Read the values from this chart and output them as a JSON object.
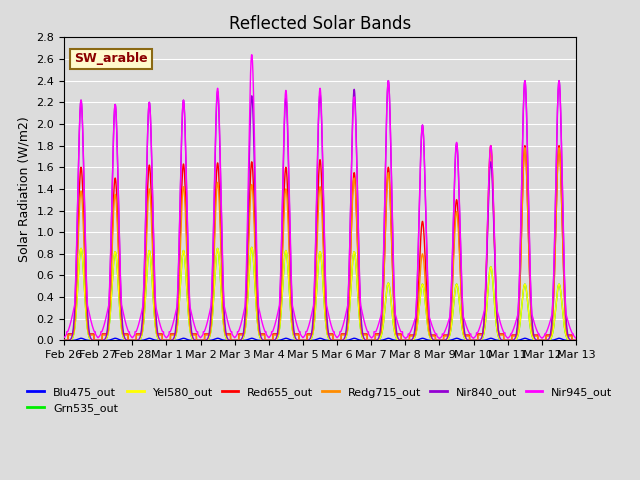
{
  "title": "Reflected Solar Bands",
  "ylabel": "Solar Radiation (W/m2)",
  "xlabel": "",
  "annotation": "SW_arable",
  "annotation_color": "#8B0000",
  "annotation_bg": "#FFFACD",
  "annotation_border": "#8B6914",
  "ylim": [
    0,
    2.8
  ],
  "background_color": "#DCDCDC",
  "plot_bg": "#DCDCDC",
  "series": [
    {
      "label": "Blu475_out",
      "color": "#0000FF",
      "zorder": 2,
      "lw": 1.0
    },
    {
      "label": "Grn535_out",
      "color": "#00EE00",
      "zorder": 3,
      "lw": 1.0
    },
    {
      "label": "Yel580_out",
      "color": "#FFFF00",
      "zorder": 4,
      "lw": 1.0
    },
    {
      "label": "Red655_out",
      "color": "#FF0000",
      "zorder": 5,
      "lw": 1.0
    },
    {
      "label": "Redg715_out",
      "color": "#FF8C00",
      "zorder": 6,
      "lw": 1.0
    },
    {
      "label": "Nir840_out",
      "color": "#9400D3",
      "zorder": 7,
      "lw": 1.0
    },
    {
      "label": "Nir945_out",
      "color": "#FF00FF",
      "zorder": 8,
      "lw": 1.0
    }
  ],
  "tick_labels": [
    "Feb 26",
    "Feb 27",
    "Feb 28",
    "Mar 1",
    "Mar 2",
    "Mar 3",
    "Mar 4",
    "Mar 5",
    "Mar 6",
    "Mar 7",
    "Mar 8",
    "Mar 9",
    "Mar 10",
    "Mar 11",
    "Mar 12",
    "Mar 13"
  ],
  "grid_color": "#FFFFFF",
  "title_fontsize": 12,
  "label_fontsize": 9,
  "tick_fontsize": 8,
  "legend_fontsize": 8,
  "n_days": 15,
  "day_peaks": {
    "Blu475_out": [
      0.02,
      0.02,
      0.02,
      0.02,
      0.02,
      0.02,
      0.02,
      0.02,
      0.02,
      0.02,
      0.02,
      0.02,
      0.02,
      0.02,
      0.02
    ],
    "Grn535_out": [
      0.85,
      0.82,
      0.83,
      0.83,
      0.85,
      0.86,
      0.83,
      0.82,
      0.82,
      0.53,
      0.52,
      0.52,
      0.68,
      0.52,
      0.52
    ],
    "Yel580_out": [
      0.85,
      0.82,
      0.83,
      0.83,
      0.85,
      0.86,
      0.83,
      0.82,
      0.82,
      0.53,
      0.52,
      0.52,
      0.68,
      0.52,
      0.52
    ],
    "Red655_out": [
      1.6,
      1.5,
      1.62,
      1.63,
      1.64,
      1.65,
      1.6,
      1.67,
      1.55,
      1.6,
      1.1,
      1.3,
      1.8,
      1.8,
      1.8
    ],
    "Redg715_out": [
      1.38,
      1.35,
      1.4,
      1.42,
      1.46,
      1.44,
      1.4,
      1.42,
      1.5,
      1.55,
      0.8,
      1.19,
      1.75,
      1.78,
      1.78
    ],
    "Nir840_out": [
      2.22,
      2.18,
      2.2,
      2.22,
      2.3,
      2.26,
      2.24,
      2.28,
      2.32,
      2.4,
      1.99,
      1.82,
      1.65,
      2.4,
      2.4
    ],
    "Nir945_out": [
      2.22,
      2.18,
      2.2,
      2.22,
      2.33,
      2.64,
      2.31,
      2.33,
      2.25,
      2.4,
      1.99,
      1.83,
      1.8,
      2.4,
      2.4
    ]
  },
  "nir945_shoulder": [
    0.5,
    0.5,
    0.48,
    0.48,
    0.5,
    0.5,
    0.5,
    0.5,
    0.5,
    0.4,
    0.35,
    0.35,
    0.42,
    0.4,
    0.4
  ],
  "nir840_shoulder": [
    0.0,
    0.0,
    0.0,
    0.0,
    0.0,
    0.0,
    0.0,
    0.0,
    0.0,
    0.0,
    0.0,
    0.0,
    0.0,
    0.0,
    0.0
  ],
  "night_flat_nir945": [
    0.08,
    0.08,
    0.08,
    0.08,
    0.08,
    0.08,
    0.08,
    0.08,
    0.08,
    0.08,
    0.06,
    0.06,
    0.07,
    0.06,
    0.06
  ],
  "night_flat_red": [
    0.06,
    0.06,
    0.06,
    0.06,
    0.06,
    0.06,
    0.06,
    0.06,
    0.06,
    0.06,
    0.05,
    0.05,
    0.06,
    0.05,
    0.05
  ],
  "night_flat_redg": [
    0.05,
    0.05,
    0.05,
    0.05,
    0.05,
    0.05,
    0.05,
    0.05,
    0.05,
    0.05,
    0.04,
    0.04,
    0.05,
    0.04,
    0.04
  ]
}
